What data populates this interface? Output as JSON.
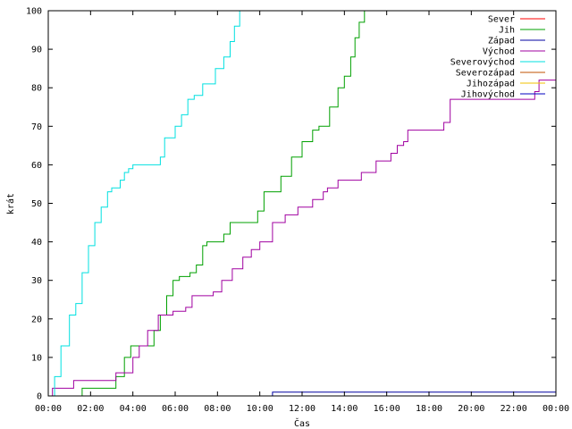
{
  "chart_data": {
    "type": "line",
    "title": "",
    "xlabel": "Čas",
    "ylabel": "krát",
    "xlim": [
      0,
      24
    ],
    "ylim": [
      0,
      100
    ],
    "grid": false,
    "legend_position": "top-right",
    "x_ticks": [
      {
        "value": 0,
        "label": "00:00"
      },
      {
        "value": 2,
        "label": "02:00"
      },
      {
        "value": 4,
        "label": "04:00"
      },
      {
        "value": 6,
        "label": "06:00"
      },
      {
        "value": 8,
        "label": "08:00"
      },
      {
        "value": 10,
        "label": "10:00"
      },
      {
        "value": 12,
        "label": "12:00"
      },
      {
        "value": 14,
        "label": "14:00"
      },
      {
        "value": 16,
        "label": "16:00"
      },
      {
        "value": 18,
        "label": "18:00"
      },
      {
        "value": 20,
        "label": "20:00"
      },
      {
        "value": 22,
        "label": "22:00"
      },
      {
        "value": 24,
        "label": "00:00"
      }
    ],
    "y_ticks": [
      0,
      10,
      20,
      30,
      40,
      50,
      60,
      70,
      80,
      90,
      100
    ],
    "series": [
      {
        "name": "Sever",
        "color": "#ff0000",
        "x": [],
        "y": []
      },
      {
        "name": "Jih",
        "color": "#00a000",
        "x": [
          1.6,
          1.6,
          3.0,
          3.2,
          3.6,
          3.9,
          4.8,
          5.0,
          5.3,
          5.6,
          5.9,
          6.2,
          6.7,
          7.0,
          7.3,
          7.5,
          8.0,
          8.3,
          8.6,
          9.5,
          9.9,
          10.2,
          10.6,
          11.0,
          11.5,
          12.0,
          12.5,
          12.8,
          13.3,
          13.7,
          14.0,
          14.3,
          14.5,
          14.7,
          14.95
        ],
        "y": [
          0,
          2,
          2,
          5,
          10,
          13,
          13,
          17,
          21,
          26,
          30,
          31,
          32,
          34,
          39,
          40,
          40,
          42,
          45,
          45,
          48,
          53,
          53,
          57,
          62,
          66,
          69,
          70,
          75,
          80,
          83,
          88,
          93,
          97,
          100
        ]
      },
      {
        "name": "Západ",
        "color": "#0000a0",
        "x": [
          10.5,
          10.6,
          10.6,
          24
        ],
        "y": [
          0,
          0,
          1,
          1
        ]
      },
      {
        "name": "Východ",
        "color": "#a000a0",
        "x": [
          0,
          0.2,
          1.1,
          1.2,
          3.1,
          3.2,
          3.8,
          4.0,
          4.3,
          4.7,
          5.2,
          5.6,
          5.9,
          6.5,
          6.8,
          7.6,
          7.8,
          8.2,
          8.7,
          9.2,
          9.6,
          10.0,
          10.6,
          11.2,
          11.8,
          12.5,
          13.0,
          13.2,
          13.7,
          14.3,
          14.8,
          15.5,
          16.2,
          16.5,
          16.8,
          17.0,
          18.2,
          18.7,
          19.0,
          19.8,
          22.9,
          23.0,
          23.2,
          24
        ],
        "y": [
          0,
          2,
          2,
          4,
          4,
          6,
          6,
          10,
          13,
          17,
          21,
          21,
          22,
          23,
          26,
          26,
          27,
          30,
          33,
          36,
          38,
          40,
          45,
          47,
          49,
          51,
          53,
          54,
          56,
          56,
          58,
          61,
          63,
          65,
          66,
          69,
          69,
          71,
          77,
          77,
          77,
          79,
          82,
          82
        ]
      },
      {
        "name": "Severovýchod",
        "color": "#00e0e0",
        "x": [
          0,
          0.3,
          0.6,
          1.0,
          1.3,
          1.6,
          1.9,
          2.2,
          2.5,
          2.8,
          3.0,
          3.4,
          3.6,
          3.8,
          4.0,
          4.5,
          5.0,
          5.3,
          5.5,
          5.7,
          6.0,
          6.3,
          6.6,
          6.9,
          7.3,
          7.6,
          7.9,
          8.3,
          8.6,
          8.8,
          9.05
        ],
        "y": [
          0,
          5,
          13,
          21,
          24,
          32,
          39,
          45,
          49,
          53,
          54,
          56,
          58,
          59,
          60,
          60,
          60,
          62,
          67,
          67,
          70,
          73,
          77,
          78,
          81,
          81,
          85,
          88,
          92,
          96,
          100
        ]
      },
      {
        "name": "Severozápad",
        "color": "#c05000",
        "x": [],
        "y": []
      },
      {
        "name": "Jihozápad",
        "color": "#f0c000",
        "x": [],
        "y": []
      },
      {
        "name": "Jihovýchod",
        "color": "#0000c0",
        "x": [],
        "y": []
      }
    ]
  }
}
